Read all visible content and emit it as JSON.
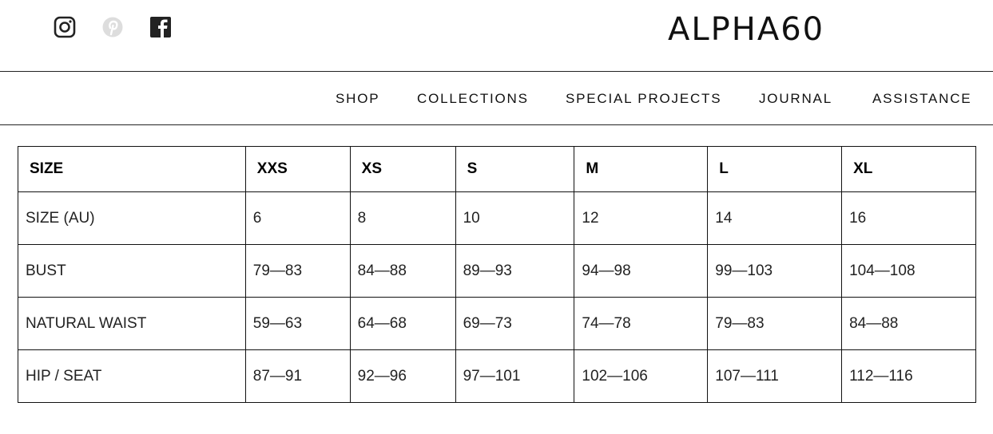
{
  "social": [
    {
      "icon": "instagram-icon"
    },
    {
      "icon": "pinterest-icon"
    },
    {
      "icon": "facebook-icon"
    }
  ],
  "logo": "ALPHA60",
  "nav": [
    "SHOP",
    "COLLECTIONS",
    "SPECIAL PROJECTS",
    "JOURNAL",
    "ASSISTANCE"
  ],
  "table": {
    "headers": [
      "SIZE",
      "XXS",
      "XS",
      "S",
      "M",
      "L",
      "XL"
    ],
    "rows": [
      [
        "SIZE (AU)",
        "6",
        "8",
        "10",
        "12",
        "14",
        "16"
      ],
      [
        "BUST",
        "79—83",
        "84—88",
        "89—93",
        "94—98",
        "99—103",
        "104—108"
      ],
      [
        "NATURAL WAIST",
        "59—63",
        "64—68",
        "69—73",
        "74—78",
        "79—83",
        "84—88"
      ],
      [
        "HIP / SEAT",
        "87—91",
        "92—96",
        "97—101",
        "102—106",
        "107—111",
        "112—116"
      ]
    ]
  }
}
